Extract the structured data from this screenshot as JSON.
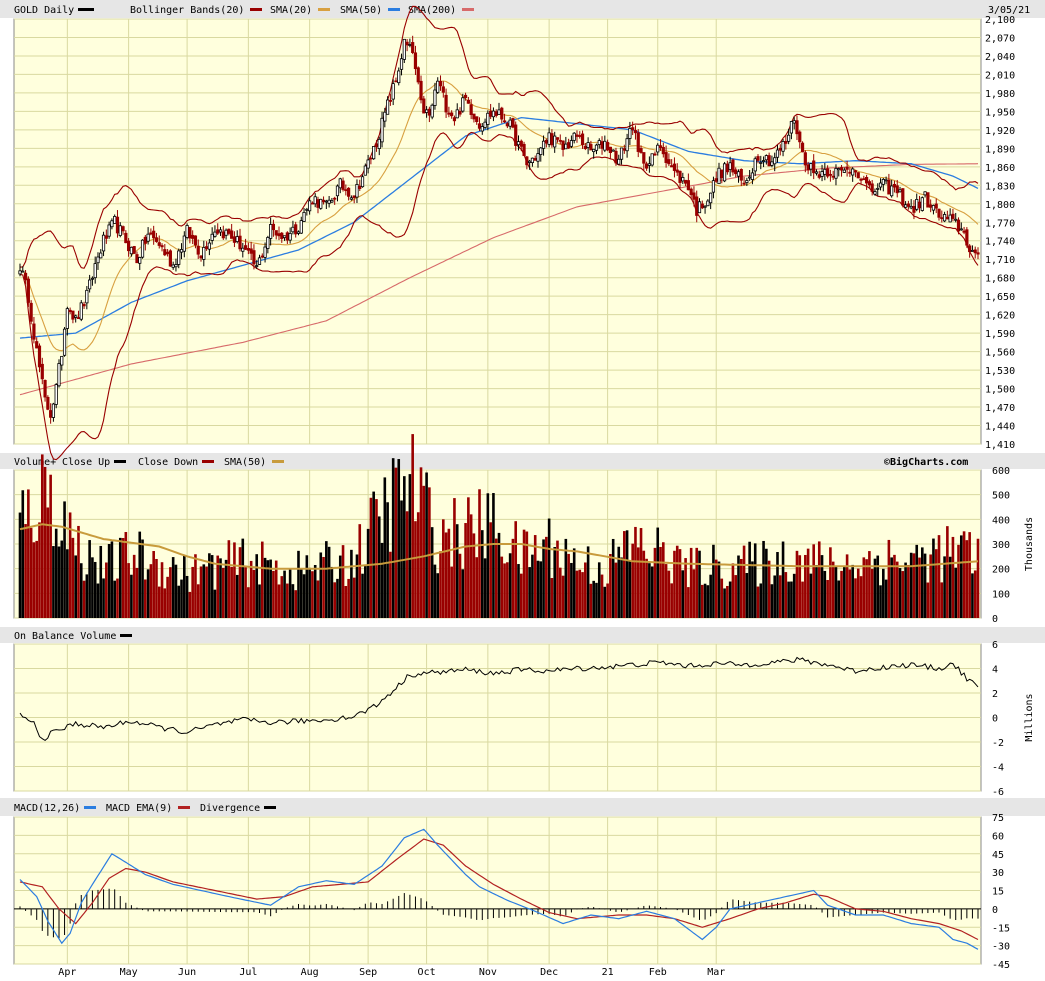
{
  "colors": {
    "panel_bg": "#ffffdd",
    "header_bg": "#e6e6e6",
    "grid": "#d9d9a0",
    "up_bar": "#000000",
    "down_bar": "#990000",
    "sma20": "#d8a040",
    "sma50": "#2b7de0",
    "sma200": "#d76a6a",
    "bollinger": "#990000",
    "macd": "#2b7de0",
    "macd_ema": "#b22222",
    "divergence": "#000000",
    "vol_sma50": "#c89b3c",
    "obv": "#000000"
  },
  "header": {
    "symbol": "GOLD Daily",
    "bollinger": "Bollinger Bands(20)",
    "sma20": "SMA(20)",
    "sma50": "SMA(50)",
    "sma200": "SMA(200)",
    "date": "3/05/21"
  },
  "volume_header": {
    "title": "Volume+",
    "close_up": "Close Up",
    "close_down": "Close Down",
    "sma50": "SMA(50)",
    "credit": "©BigCharts.com"
  },
  "obv_header": {
    "title": "On Balance Volume"
  },
  "macd_header": {
    "macd": "MACD(12,26)",
    "ema": "MACD EMA(9)",
    "divergence": "Divergence"
  },
  "chart_data": [
    {
      "type": "candlestick",
      "title": "GOLD Daily",
      "x_months": [
        "Apr",
        "May",
        "Jun",
        "Jul",
        "Aug",
        "Sep",
        "Oct",
        "Nov",
        "Dec",
        "21",
        "Feb",
        "Mar"
      ],
      "y_ticks": [
        2100,
        2070,
        2040,
        2010,
        1980,
        1950,
        1920,
        1890,
        1860,
        1830,
        1800,
        1770,
        1740,
        1710,
        1680,
        1650,
        1620,
        1590,
        1560,
        1530,
        1500,
        1470,
        1440,
        1410
      ],
      "ylim": [
        1410,
        2100
      ],
      "anchors_close": [
        [
          0,
          1700
        ],
        [
          3,
          1650
        ],
        [
          6,
          1560
        ],
        [
          9,
          1480
        ],
        [
          11,
          1460
        ],
        [
          13,
          1500
        ],
        [
          15,
          1560
        ],
        [
          17,
          1640
        ],
        [
          20,
          1610
        ],
        [
          24,
          1650
        ],
        [
          27,
          1700
        ],
        [
          30,
          1740
        ],
        [
          34,
          1770
        ],
        [
          38,
          1740
        ],
        [
          42,
          1710
        ],
        [
          46,
          1750
        ],
        [
          50,
          1735
        ],
        [
          55,
          1700
        ],
        [
          60,
          1755
        ],
        [
          65,
          1720
        ],
        [
          70,
          1760
        ],
        [
          75,
          1750
        ],
        [
          80,
          1730
        ],
        [
          85,
          1695
        ],
        [
          90,
          1760
        ],
        [
          95,
          1745
        ],
        [
          100,
          1765
        ],
        [
          105,
          1810
        ],
        [
          110,
          1795
        ],
        [
          115,
          1830
        ],
        [
          120,
          1815
        ],
        [
          124,
          1855
        ],
        [
          128,
          1900
        ],
        [
          132,
          1960
        ],
        [
          135,
          2000
        ],
        [
          138,
          2060
        ],
        [
          141,
          2045
        ],
        [
          144,
          1960
        ],
        [
          147,
          1940
        ],
        [
          150,
          2000
        ],
        [
          153,
          1960
        ],
        [
          156,
          1940
        ],
        [
          160,
          1970
        ],
        [
          165,
          1930
        ],
        [
          170,
          1950
        ],
        [
          175,
          1935
        ],
        [
          178,
          1905
        ],
        [
          182,
          1865
        ],
        [
          186,
          1880
        ],
        [
          190,
          1910
        ],
        [
          195,
          1890
        ],
        [
          200,
          1910
        ],
        [
          205,
          1885
        ],
        [
          210,
          1900
        ],
        [
          215,
          1870
        ],
        [
          220,
          1930
        ],
        [
          222,
          1880
        ],
        [
          226,
          1865
        ],
        [
          230,
          1895
        ],
        [
          235,
          1850
        ],
        [
          240,
          1830
        ],
        [
          243,
          1790
        ],
        [
          247,
          1810
        ],
        [
          251,
          1850
        ],
        [
          255,
          1860
        ],
        [
          260,
          1830
        ],
        [
          265,
          1880
        ],
        [
          270,
          1870
        ],
        [
          275,
          1900
        ],
        [
          278,
          1940
        ],
        [
          281,
          1880
        ],
        [
          285,
          1850
        ],
        [
          290,
          1855
        ],
        [
          295,
          1850
        ],
        [
          300,
          1860
        ],
        [
          305,
          1820
        ],
        [
          310,
          1830
        ],
        [
          315,
          1820
        ],
        [
          320,
          1790
        ],
        [
          325,
          1810
        ],
        [
          330,
          1780
        ],
        [
          335,
          1770
        ],
        [
          338,
          1760
        ],
        [
          341,
          1730
        ],
        [
          344,
          1710
        ]
      ],
      "sma200_anchors": [
        [
          0,
          1490
        ],
        [
          40,
          1540
        ],
        [
          80,
          1575
        ],
        [
          110,
          1610
        ],
        [
          140,
          1680
        ],
        [
          170,
          1745
        ],
        [
          200,
          1795
        ],
        [
          230,
          1820
        ],
        [
          260,
          1845
        ],
        [
          290,
          1858
        ],
        [
          320,
          1864
        ],
        [
          344,
          1865
        ]
      ],
      "sma50_anchors": [
        [
          0,
          1582
        ],
        [
          20,
          1590
        ],
        [
          40,
          1640
        ],
        [
          60,
          1675
        ],
        [
          80,
          1700
        ],
        [
          100,
          1725
        ],
        [
          120,
          1770
        ],
        [
          140,
          1840
        ],
        [
          160,
          1910
        ],
        [
          180,
          1940
        ],
        [
          200,
          1930
        ],
        [
          220,
          1920
        ],
        [
          240,
          1885
        ],
        [
          260,
          1870
        ],
        [
          280,
          1865
        ],
        [
          300,
          1870
        ],
        [
          320,
          1865
        ],
        [
          335,
          1845
        ],
        [
          344,
          1825
        ]
      ]
    },
    {
      "type": "bar",
      "title": "Volume+",
      "ylabel": "Thousands",
      "y_ticks": [
        600,
        500,
        400,
        300,
        200,
        100,
        0
      ],
      "ylim": [
        0,
        600
      ],
      "series": [
        {
          "name": "Close Up"
        },
        {
          "name": "Close Down"
        },
        {
          "name": "SMA(50)"
        }
      ],
      "vol_anchors": [
        [
          0,
          380
        ],
        [
          10,
          520
        ],
        [
          20,
          300
        ],
        [
          30,
          200
        ],
        [
          40,
          260
        ],
        [
          60,
          180
        ],
        [
          80,
          230
        ],
        [
          100,
          190
        ],
        [
          120,
          240
        ],
        [
          130,
          420
        ],
        [
          140,
          560
        ],
        [
          150,
          330
        ],
        [
          160,
          350
        ],
        [
          170,
          380
        ],
        [
          180,
          250
        ],
        [
          190,
          300
        ],
        [
          200,
          230
        ],
        [
          210,
          200
        ],
        [
          220,
          300
        ],
        [
          230,
          260
        ],
        [
          240,
          200
        ],
        [
          250,
          210
        ],
        [
          260,
          210
        ],
        [
          270,
          230
        ],
        [
          280,
          250
        ],
        [
          290,
          210
        ],
        [
          300,
          220
        ],
        [
          310,
          240
        ],
        [
          320,
          230
        ],
        [
          330,
          260
        ],
        [
          344,
          260
        ]
      ],
      "sma_anchors": [
        [
          0,
          360
        ],
        [
          8,
          380
        ],
        [
          15,
          370
        ],
        [
          30,
          320
        ],
        [
          50,
          290
        ],
        [
          60,
          250
        ],
        [
          70,
          220
        ],
        [
          90,
          200
        ],
        [
          110,
          200
        ],
        [
          130,
          220
        ],
        [
          145,
          250
        ],
        [
          160,
          290
        ],
        [
          170,
          300
        ],
        [
          180,
          300
        ],
        [
          190,
          280
        ],
        [
          200,
          270
        ],
        [
          220,
          230
        ],
        [
          240,
          220
        ],
        [
          260,
          215
        ],
        [
          280,
          210
        ],
        [
          300,
          210
        ],
        [
          320,
          210
        ],
        [
          344,
          230
        ]
      ]
    },
    {
      "type": "line",
      "title": "On Balance Volume",
      "ylabel": "Millions",
      "y_ticks": [
        6,
        4,
        2,
        0,
        -2,
        -4,
        -6
      ],
      "ylim": [
        -6,
        6
      ],
      "series": [
        {
          "name": "On Balance Volume"
        }
      ],
      "anchors": [
        [
          0,
          0.2
        ],
        [
          5,
          -0.5
        ],
        [
          8,
          -1.8
        ],
        [
          12,
          -1.2
        ],
        [
          20,
          -0.5
        ],
        [
          30,
          -0.8
        ],
        [
          40,
          -0.3
        ],
        [
          50,
          -0.8
        ],
        [
          60,
          -1.2
        ],
        [
          70,
          -0.6
        ],
        [
          80,
          -0.2
        ],
        [
          90,
          -0.4
        ],
        [
          100,
          -0.3
        ],
        [
          110,
          -0.2
        ],
        [
          120,
          0.1
        ],
        [
          128,
          1.0
        ],
        [
          135,
          2.4
        ],
        [
          140,
          3.5
        ],
        [
          150,
          3.7
        ],
        [
          160,
          3.9
        ],
        [
          170,
          3.6
        ],
        [
          180,
          3.9
        ],
        [
          190,
          3.8
        ],
        [
          200,
          4.0
        ],
        [
          210,
          4.1
        ],
        [
          220,
          4.3
        ],
        [
          230,
          4.5
        ],
        [
          240,
          4.2
        ],
        [
          250,
          4.4
        ],
        [
          260,
          4.3
        ],
        [
          270,
          4.5
        ],
        [
          280,
          4.7
        ],
        [
          290,
          4.3
        ],
        [
          300,
          3.8
        ],
        [
          310,
          4.1
        ],
        [
          320,
          4.3
        ],
        [
          330,
          4.0
        ],
        [
          335,
          4.4
        ],
        [
          340,
          3.2
        ],
        [
          344,
          2.5
        ]
      ]
    },
    {
      "type": "line",
      "title": "MACD(12,26)",
      "y_ticks": [
        75,
        60,
        45,
        30,
        15,
        0,
        -15,
        -30,
        -45
      ],
      "ylim": [
        -45,
        75
      ],
      "series": [
        {
          "name": "MACD(12,26)"
        },
        {
          "name": "MACD EMA(9)"
        },
        {
          "name": "Divergence"
        }
      ],
      "macd_anchors": [
        [
          0,
          24
        ],
        [
          6,
          10
        ],
        [
          10,
          -10
        ],
        [
          15,
          -28
        ],
        [
          18,
          -20
        ],
        [
          22,
          5
        ],
        [
          26,
          20
        ],
        [
          33,
          45
        ],
        [
          38,
          38
        ],
        [
          45,
          28
        ],
        [
          55,
          20
        ],
        [
          65,
          15
        ],
        [
          75,
          10
        ],
        [
          90,
          3
        ],
        [
          100,
          18
        ],
        [
          110,
          23
        ],
        [
          120,
          20
        ],
        [
          130,
          35
        ],
        [
          138,
          58
        ],
        [
          145,
          65
        ],
        [
          150,
          52
        ],
        [
          155,
          40
        ],
        [
          160,
          28
        ],
        [
          165,
          18
        ],
        [
          175,
          7
        ],
        [
          185,
          -2
        ],
        [
          195,
          -12
        ],
        [
          205,
          -5
        ],
        [
          215,
          -8
        ],
        [
          225,
          -2
        ],
        [
          235,
          -8
        ],
        [
          245,
          -25
        ],
        [
          250,
          -15
        ],
        [
          255,
          0
        ],
        [
          265,
          5
        ],
        [
          275,
          10
        ],
        [
          285,
          15
        ],
        [
          290,
          3
        ],
        [
          300,
          -5
        ],
        [
          310,
          -5
        ],
        [
          320,
          -12
        ],
        [
          330,
          -15
        ],
        [
          335,
          -25
        ],
        [
          340,
          -28
        ],
        [
          344,
          -33
        ]
      ],
      "ema_anchors": [
        [
          0,
          22
        ],
        [
          8,
          18
        ],
        [
          14,
          0
        ],
        [
          20,
          -12
        ],
        [
          26,
          5
        ],
        [
          32,
          25
        ],
        [
          38,
          33
        ],
        [
          45,
          30
        ],
        [
          55,
          22
        ],
        [
          70,
          15
        ],
        [
          85,
          8
        ],
        [
          95,
          10
        ],
        [
          105,
          18
        ],
        [
          115,
          20
        ],
        [
          125,
          22
        ],
        [
          135,
          40
        ],
        [
          145,
          57
        ],
        [
          152,
          52
        ],
        [
          160,
          35
        ],
        [
          170,
          20
        ],
        [
          180,
          8
        ],
        [
          190,
          -3
        ],
        [
          200,
          -8
        ],
        [
          215,
          -5
        ],
        [
          225,
          -5
        ],
        [
          235,
          -8
        ],
        [
          245,
          -15
        ],
        [
          255,
          -8
        ],
        [
          265,
          0
        ],
        [
          275,
          5
        ],
        [
          285,
          12
        ],
        [
          290,
          10
        ],
        [
          300,
          0
        ],
        [
          310,
          -2
        ],
        [
          320,
          -8
        ],
        [
          330,
          -12
        ],
        [
          338,
          -18
        ],
        [
          344,
          -25
        ]
      ]
    }
  ]
}
